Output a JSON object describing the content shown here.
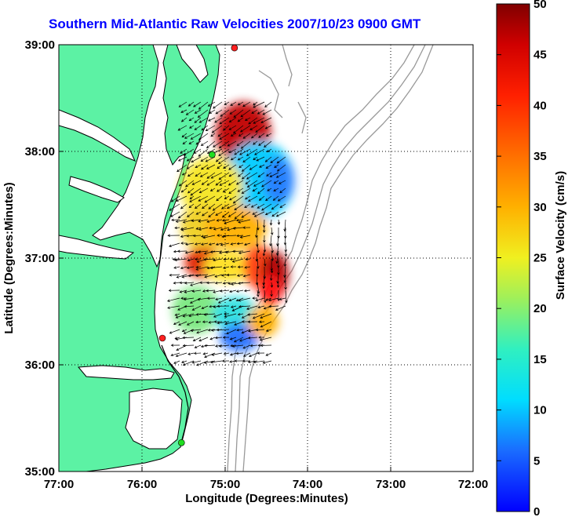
{
  "title": "Southern Mid-Atlantic Raw Velocities 2007/10/23 0900 GMT",
  "map": {
    "xlabel": "Longitude (Degrees:Minutes)",
    "ylabel": "Latitude (Degrees:Minutes)",
    "x_ticks": [
      "77:00",
      "76:00",
      "75:00",
      "74:00",
      "73:00",
      "72:00"
    ],
    "y_ticks": [
      "39:00",
      "38:00",
      "37:00",
      "36:00",
      "35:00"
    ],
    "land_color": "#5cf2a4",
    "coast_color": "#000000",
    "bathymetry_color": "#999999",
    "grid": "dotted"
  },
  "colorbar": {
    "label": "Surface Velocity (cm/s)",
    "ticks": [
      "50",
      "45",
      "40",
      "35",
      "30",
      "25",
      "20",
      "15",
      "10",
      "5",
      "0"
    ],
    "range": [
      0,
      50
    ]
  },
  "stations": [
    {
      "lat": 38.97,
      "lon": 74.88,
      "color": "#ff2020"
    },
    {
      "lat": 37.97,
      "lon": 75.15,
      "color": "#20dd20"
    },
    {
      "lat": 36.25,
      "lon": 75.75,
      "color": "#ff2020"
    },
    {
      "lat": 35.27,
      "lon": 75.52,
      "color": "#20dd20"
    }
  ]
}
